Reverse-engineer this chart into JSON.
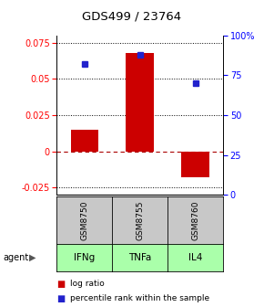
{
  "title": "GDS499 / 23764",
  "samples": [
    "GSM8750",
    "GSM8755",
    "GSM8760"
  ],
  "agents": [
    "IFNg",
    "TNFa",
    "IL4"
  ],
  "log_ratios": [
    0.015,
    0.068,
    -0.018
  ],
  "percentile_ranks_pct": [
    82,
    88,
    70
  ],
  "ylim_left": [
    -0.03,
    0.08
  ],
  "ylim_right": [
    0,
    100
  ],
  "yticks_left": [
    -0.025,
    0,
    0.025,
    0.05,
    0.075
  ],
  "yticks_right": [
    0,
    25,
    50,
    75,
    100
  ],
  "ytick_labels_left": [
    "-0.025",
    "0",
    "0.025",
    "0.05",
    "0.075"
  ],
  "ytick_labels_right": [
    "0",
    "25",
    "50",
    "75",
    "100%"
  ],
  "bar_color": "#cc0000",
  "dot_color": "#2222cc",
  "sample_box_color": "#c8c8c8",
  "agent_color": "#aaffaa",
  "bar_width": 0.5,
  "x_positions": [
    1,
    2,
    3
  ]
}
